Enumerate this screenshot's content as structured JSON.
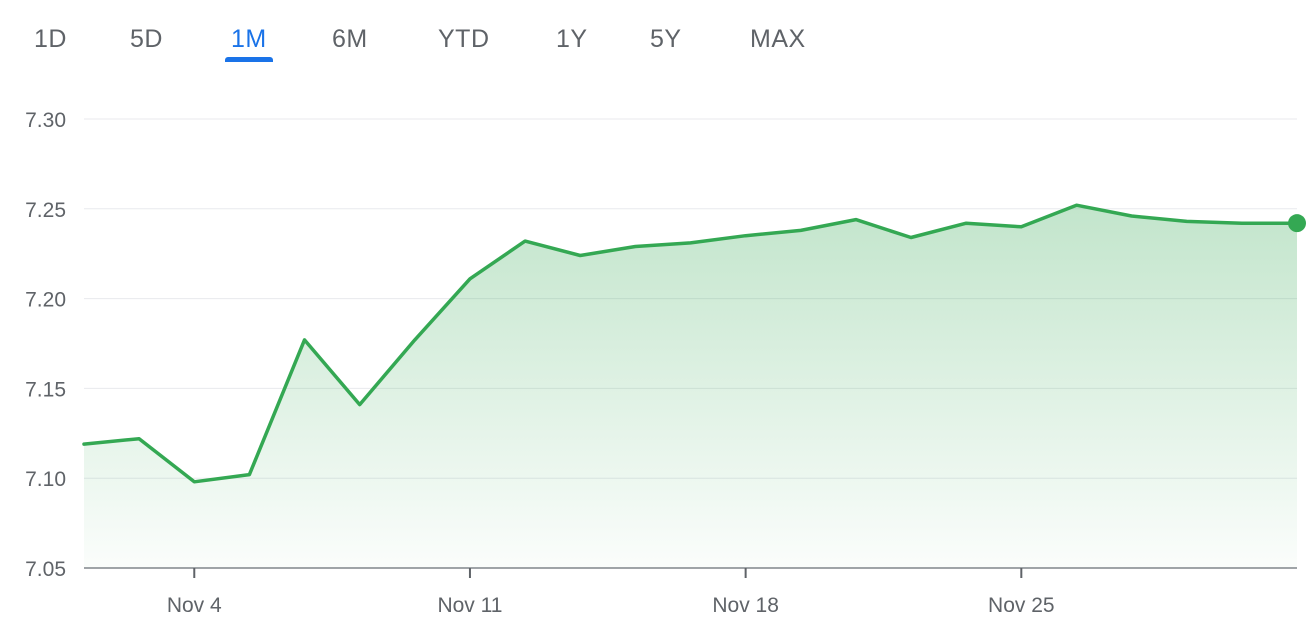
{
  "range_tabs": {
    "items": [
      "1D",
      "5D",
      "1M",
      "6M",
      "YTD",
      "1Y",
      "5Y",
      "MAX"
    ],
    "selected": "1M",
    "accent_color": "#1a73e8"
  },
  "chart_data": {
    "type": "area",
    "title": "",
    "xlabel": "",
    "ylabel": "",
    "ylim": [
      7.05,
      7.3
    ],
    "y_ticks": [
      "7.30",
      "7.25",
      "7.20",
      "7.15",
      "7.10",
      "7.05"
    ],
    "x_tick_labels": [
      "Nov 4",
      "Nov 11",
      "Nov 18",
      "Nov 25"
    ],
    "grid": true,
    "line_color": "#34a853",
    "series": [
      {
        "x": [
          "Oct 31",
          "Nov 1",
          "Nov 4",
          "Nov 5",
          "Nov 6",
          "Nov 7",
          "Nov 8",
          "Nov 11",
          "Nov 12",
          "Nov 13",
          "Nov 14",
          "Nov 15",
          "Nov 18",
          "Nov 19",
          "Nov 20",
          "Nov 21",
          "Nov 22",
          "Nov 25",
          "Nov 26",
          "Nov 27",
          "Nov 28",
          "Nov 29",
          "Dec 2"
        ],
        "values": [
          7.119,
          7.122,
          7.098,
          7.102,
          7.177,
          7.141,
          7.177,
          7.211,
          7.232,
          7.224,
          7.229,
          7.231,
          7.235,
          7.238,
          7.244,
          7.234,
          7.242,
          7.24,
          7.252,
          7.246,
          7.243,
          7.242,
          7.242
        ]
      }
    ]
  }
}
